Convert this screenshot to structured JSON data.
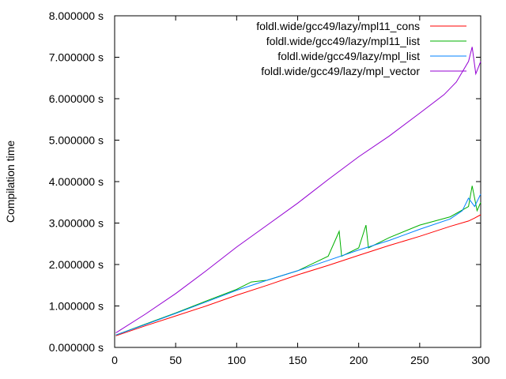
{
  "chart_data": {
    "type": "line",
    "title": "",
    "xlabel": "",
    "ylabel": "Compilation time",
    "xlim": [
      0,
      300
    ],
    "ylim": [
      0,
      8
    ],
    "x_ticks": [
      0,
      50,
      100,
      150,
      200,
      250,
      300
    ],
    "x_tick_labels": [
      "0",
      "50",
      "100",
      "150",
      "200",
      "250",
      "300"
    ],
    "y_ticks": [
      0,
      1,
      2,
      3,
      4,
      5,
      6,
      7,
      8
    ],
    "y_tick_labels": [
      "0.000000 s",
      "1.000000 s",
      "2.000000 s",
      "3.000000 s",
      "4.000000 s",
      "5.000000 s",
      "6.000000 s",
      "7.000000 s",
      "8.000000 s"
    ],
    "grid": false,
    "legend_position": "top-right",
    "series": [
      {
        "name": "foldl.wide/gcc49/lazy/mpl11_cons",
        "color": "#ff0000",
        "x": [
          1,
          25,
          50,
          75,
          100,
          125,
          150,
          175,
          200,
          225,
          250,
          275,
          290,
          295,
          300
        ],
        "values": [
          0.28,
          0.52,
          0.76,
          1.0,
          1.26,
          1.5,
          1.75,
          1.98,
          2.22,
          2.46,
          2.68,
          2.92,
          3.05,
          3.12,
          3.2
        ]
      },
      {
        "name": "foldl.wide/gcc49/lazy/mpl11_list",
        "color": "#00b000",
        "x": [
          1,
          25,
          50,
          75,
          100,
          112,
          125,
          150,
          175,
          184,
          186,
          200,
          206,
          208,
          225,
          250,
          275,
          290,
          293,
          297,
          300
        ],
        "values": [
          0.3,
          0.56,
          0.83,
          1.12,
          1.4,
          1.58,
          1.62,
          1.85,
          2.2,
          2.8,
          2.2,
          2.4,
          2.95,
          2.4,
          2.65,
          2.95,
          3.15,
          3.4,
          3.9,
          3.3,
          3.5
        ]
      },
      {
        "name": "foldl.wide/gcc49/lazy/mpl_list",
        "color": "#0080ff",
        "x": [
          1,
          25,
          50,
          75,
          100,
          125,
          150,
          175,
          200,
          225,
          250,
          275,
          285,
          290,
          295,
          300
        ],
        "values": [
          0.3,
          0.55,
          0.82,
          1.1,
          1.38,
          1.62,
          1.85,
          2.1,
          2.35,
          2.58,
          2.85,
          3.1,
          3.3,
          3.6,
          3.4,
          3.7
        ]
      },
      {
        "name": "foldl.wide/gcc49/lazy/mpl_vector",
        "color": "#9400d3",
        "x": [
          1,
          25,
          50,
          75,
          100,
          125,
          150,
          175,
          200,
          225,
          250,
          270,
          280,
          290,
          293,
          296,
          300
        ],
        "values": [
          0.35,
          0.8,
          1.3,
          1.85,
          2.42,
          2.95,
          3.48,
          4.05,
          4.6,
          5.1,
          5.65,
          6.1,
          6.4,
          6.9,
          7.25,
          6.6,
          6.9
        ]
      }
    ]
  }
}
